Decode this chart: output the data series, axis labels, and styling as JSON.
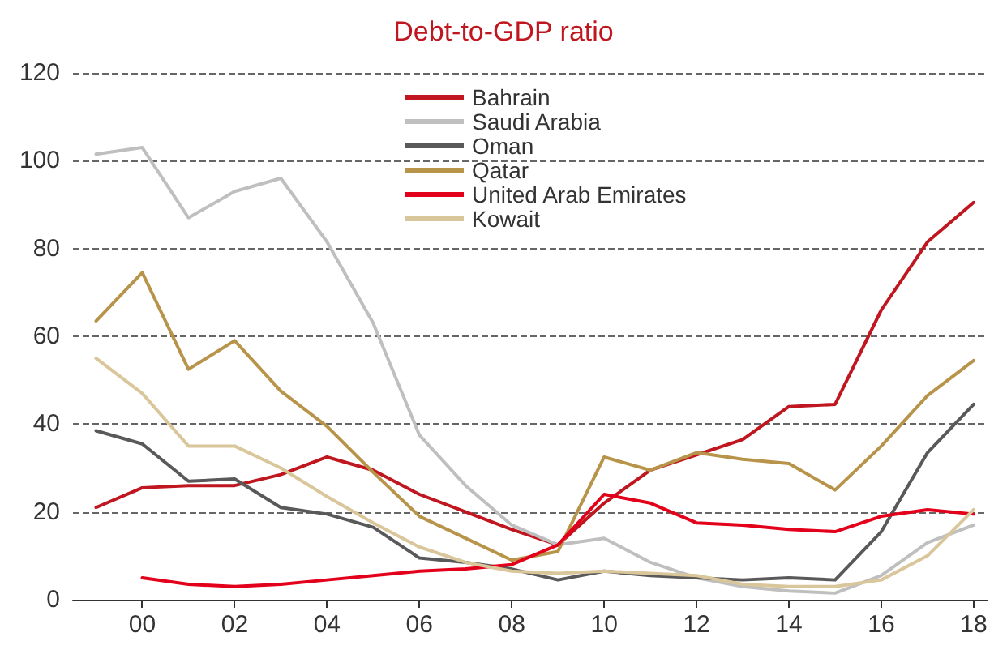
{
  "chart_data": {
    "type": "line",
    "title": "Debt-to-GDP ratio",
    "x": [
      1999,
      2000,
      2001,
      2002,
      2003,
      2004,
      2005,
      2006,
      2007,
      2008,
      2009,
      2010,
      2011,
      2012,
      2013,
      2014,
      2015,
      2016,
      2017,
      2018
    ],
    "series": [
      {
        "name": "Bahrain",
        "color": "#c0161f",
        "values": [
          21,
          25.5,
          26,
          26,
          28.5,
          32.5,
          29.5,
          24,
          20,
          16,
          12.5,
          22,
          29.5,
          33,
          36.5,
          44,
          44.5,
          66,
          81.5,
          90.5
        ]
      },
      {
        "name": "Saudi Arabia",
        "color": "#bfbfbf",
        "values": [
          101.5,
          103,
          87,
          93,
          96,
          81.5,
          63,
          37.5,
          26,
          17,
          12.5,
          14,
          8.5,
          5,
          3,
          2,
          1.5,
          5.5,
          13,
          17
        ]
      },
      {
        "name": "Oman",
        "color": "#595959",
        "values": [
          38.5,
          35.5,
          27,
          27.5,
          21,
          19.5,
          16.5,
          9.5,
          8.5,
          7,
          4.5,
          6.5,
          5.5,
          5,
          4.5,
          5,
          4.5,
          15.5,
          33.5,
          44.5
        ]
      },
      {
        "name": "Qatar",
        "color": "#b8944a",
        "values": [
          63.5,
          74.5,
          52.5,
          59,
          47.5,
          39.5,
          29,
          19,
          14,
          9,
          11,
          32.5,
          29.5,
          33.5,
          32,
          31,
          25,
          35,
          46.5,
          54.5
        ]
      },
      {
        "name": "United Arab Emirates",
        "color": "#e3001b",
        "values": [
          null,
          5,
          3.5,
          3,
          3.5,
          4.5,
          5.5,
          6.5,
          7,
          8,
          12.5,
          24,
          22,
          17.5,
          17,
          16,
          15.5,
          19,
          20.5,
          19.5
        ]
      },
      {
        "name": "Kowait",
        "color": "#d9c69a",
        "values": [
          55,
          47,
          35,
          35,
          30,
          23.5,
          17.5,
          12,
          8.5,
          6.5,
          6,
          6.5,
          6,
          5.5,
          3.5,
          3,
          3,
          4.5,
          10,
          20.5
        ]
      }
    ],
    "xlim": [
      1998.5,
      2018.3
    ],
    "xticks": [
      {
        "value": 2000,
        "label": "00"
      },
      {
        "value": 2002,
        "label": "02"
      },
      {
        "value": 2004,
        "label": "04"
      },
      {
        "value": 2006,
        "label": "06"
      },
      {
        "value": 2008,
        "label": "08"
      },
      {
        "value": 2010,
        "label": "10"
      },
      {
        "value": 2012,
        "label": "12"
      },
      {
        "value": 2014,
        "label": "14"
      },
      {
        "value": 2016,
        "label": "16"
      },
      {
        "value": 2018,
        "label": "18"
      }
    ],
    "ylim": [
      0,
      120
    ],
    "yticks": [
      0,
      20,
      40,
      60,
      80,
      100,
      120
    ],
    "grid": "y",
    "legend": "top",
    "marker": "none",
    "line_style": "solid"
  }
}
